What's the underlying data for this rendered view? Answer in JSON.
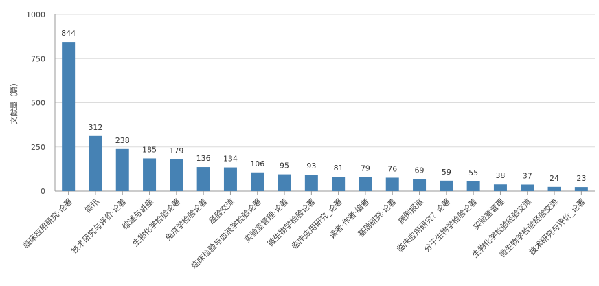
{
  "chart_data": {
    "type": "bar",
    "ylabel": "文献量（篇）",
    "ylim": [
      0,
      1000
    ],
    "yticks": [
      0,
      250,
      500,
      750,
      1000
    ],
    "grid": true,
    "bar_color": "#4682b4",
    "categories": [
      "临床应用研究·论著",
      "简讯",
      "技术研究与评价·论著",
      "综述与讲座",
      "生物化学检验论著",
      "免疫学检验论著",
      "经验交流",
      "临床检验与血液学检验论著",
      "实验室管理·论著",
      "微生物学检验论著",
      "临床应用研究_论著",
      "读者·作者·编者",
      "基础研究·论著",
      "病例报道",
      "临床应用研究？论著",
      "分子生物学检验论著",
      "实验室管理",
      "生物化学检验经验交流",
      "微生物学检验经验交流",
      "技术研究与评价_论著"
    ],
    "values": [
      844,
      312,
      238,
      185,
      179,
      136,
      134,
      106,
      95,
      93,
      81,
      79,
      76,
      69,
      59,
      55,
      38,
      37,
      24,
      23
    ]
  }
}
